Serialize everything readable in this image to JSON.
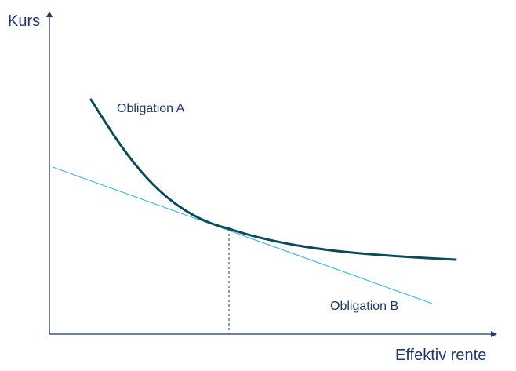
{
  "y_axis": {
    "label": "Kurs"
  },
  "x_axis": {
    "label": "Effektiv rente"
  },
  "curves": {
    "curve_a": {
      "label": "Obligation A"
    },
    "curve_b": {
      "label": "Obligation B"
    }
  },
  "colors": {
    "text": "#1f3864",
    "axis": "#1f3864",
    "curve_a": "#0d4a5a",
    "curve_b": "#3bb3e0",
    "tangent_marker": "#1f3864"
  }
}
